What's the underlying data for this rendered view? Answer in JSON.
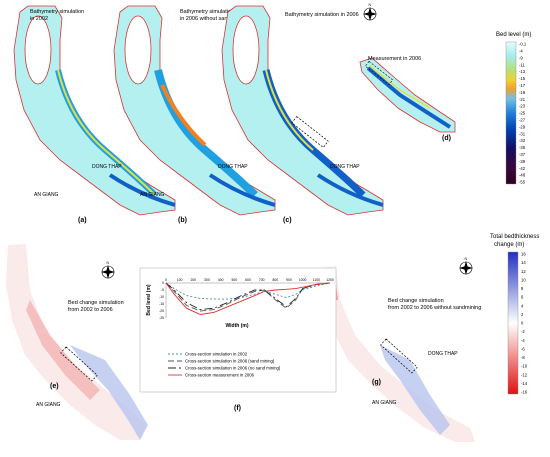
{
  "panels": {
    "a": {
      "title_line1": "Bathymetry simulation",
      "title_line2": "in 2002",
      "label": "(a)",
      "place_ag": "AN GIANG",
      "place_dt": "DONG THAP"
    },
    "b": {
      "title_line1": "Bathymetry simulation",
      "title_line2": "in 2006 without sandmining",
      "label": "(b)",
      "place_ag": "AN GIANG",
      "place_dt": "DONG THAP"
    },
    "c": {
      "title_line1": "Bathymetry simulation in 2006",
      "label": "(c)",
      "place_dt": "DONG THAP"
    },
    "d": {
      "title": "Measurement in 2006",
      "label": "(d)"
    },
    "e": {
      "title_line1": "Bed change simulation",
      "title_line2": "from 2002 to 2006",
      "label": "(e)",
      "place_ag": "AN GIANG"
    },
    "f": {
      "label": "(f)"
    },
    "g": {
      "title_line1": "Bed change simulation",
      "title_line2": "from 2002 to 2006 without sandmining",
      "label": "(g)",
      "place_ag": "AN GIANG",
      "place_dt": "DONG THAP"
    }
  },
  "bed_level_legend": {
    "title": "Bed level (m)",
    "ticks": [
      "-0.1",
      "-4",
      "-9",
      "-11",
      "-13",
      "-15",
      "-17",
      "-19",
      "-21",
      "-23",
      "-25",
      "-27",
      "-29",
      "-31",
      "-33",
      "-35",
      "-37",
      "-39",
      "-42",
      "-48",
      "-55"
    ],
    "colors": [
      "#e8fbfb",
      "#c8f4f4",
      "#a4ecec",
      "#80e2e2",
      "#b8e070",
      "#e0e040",
      "#f0d030",
      "#f0a030",
      "#70c0e8",
      "#40a0e0",
      "#2080d8",
      "#1060c8",
      "#0040b0",
      "#002890",
      "#001a78",
      "#101060",
      "#200c54",
      "#300848",
      "#3c063c",
      "#440430",
      "#300020"
    ]
  },
  "bed_change_legend": {
    "title_line1": "Total bedthickness",
    "title_line2": "change (m)",
    "ticks": [
      "16",
      "14",
      "12",
      "10",
      "8",
      "6",
      "4",
      "2",
      "0",
      "-2",
      "-4",
      "-6",
      "-8",
      "-10",
      "-12",
      "-14",
      "-16"
    ]
  },
  "compass_label": "N",
  "chart_data": {
    "type": "line",
    "xlabel": "Width (m)",
    "ylabel": "Bed level (m)",
    "xlim": [
      0,
      1200
    ],
    "ylim": [
      -25,
      0
    ],
    "xticks": [
      "0",
      "100",
      "200",
      "300",
      "400",
      "500",
      "600",
      "700",
      "800",
      "900",
      "1000",
      "1100",
      "1200"
    ],
    "yticks": [
      "0",
      "-5",
      "-10",
      "-15",
      "-20",
      "-25"
    ],
    "series": [
      {
        "name": "Cross-section simulation in 2002",
        "color": "#4a86c6",
        "dash": "2,2",
        "x": [
          0,
          60,
          150,
          250,
          350,
          450,
          550,
          650,
          720,
          800,
          880,
          950,
          1000,
          1100,
          1200
        ],
        "y": [
          0,
          -4,
          -9,
          -11,
          -11.5,
          -11.5,
          -10.5,
          -8,
          -6,
          -8,
          -10.5,
          -8,
          -5,
          -2,
          0
        ]
      },
      {
        "name": "Cross-section simulation in 2006 (sand mining)",
        "color": "#555555",
        "dash": "6,3",
        "x": [
          0,
          60,
          150,
          250,
          350,
          450,
          550,
          650,
          720,
          800,
          880,
          950,
          1000,
          1100,
          1200
        ],
        "y": [
          0,
          -6,
          -16,
          -20,
          -19,
          -15,
          -10,
          -6,
          -5,
          -12,
          -18,
          -12,
          -4,
          -1,
          0
        ]
      },
      {
        "name": "Cross-section simulation in 2006 (no sand mining)",
        "color": "#222222",
        "dash": "8,3,2,3",
        "x": [
          0,
          60,
          150,
          250,
          350,
          450,
          550,
          650,
          720,
          800,
          880,
          950,
          1000,
          1100,
          1200
        ],
        "y": [
          0,
          -5,
          -14,
          -19,
          -18,
          -14,
          -9,
          -5,
          -5,
          -11,
          -17,
          -11,
          -4,
          -1,
          0
        ]
      },
      {
        "name": "Cross-section measurement in 2006",
        "color": "#e03030",
        "dash": "",
        "x": [
          0,
          60,
          150,
          250,
          350,
          450,
          550,
          650,
          720,
          800,
          880,
          950,
          1000,
          1100,
          1200
        ],
        "y": [
          0,
          -8,
          -18,
          -22.5,
          -21,
          -17,
          -13,
          -9,
          -6,
          -5,
          -4.5,
          -4,
          -3,
          -1,
          0
        ]
      }
    ]
  }
}
